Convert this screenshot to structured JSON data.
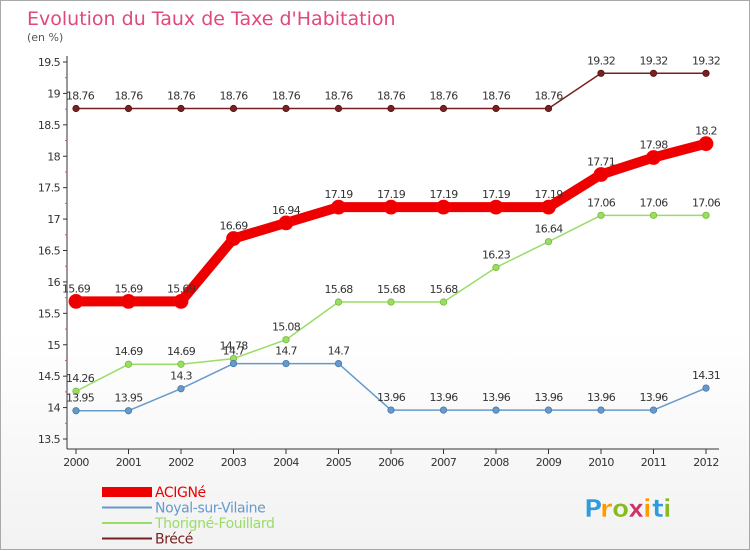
{
  "chart_data": {
    "type": "line",
    "title": "Evolution du Taux de Taxe d'Habitation",
    "subtitle": "(en %)",
    "categories": [
      "2000",
      "2001",
      "2002",
      "2003",
      "2004",
      "2005",
      "2006",
      "2007",
      "2008",
      "2009",
      "2010",
      "2011",
      "2012"
    ],
    "ylim": [
      13.5,
      19.5
    ],
    "yticks": [
      "13.5",
      "14",
      "14.5",
      "15",
      "15.5",
      "16",
      "16.5",
      "17",
      "17.5",
      "18",
      "18.5",
      "19",
      "19.5"
    ],
    "grid": false,
    "legend_position": "bottom-left",
    "series": [
      {
        "name": "ACIGNé",
        "color": "#ee0000",
        "values": [
          15.69,
          15.69,
          15.69,
          16.69,
          16.94,
          17.19,
          17.19,
          17.19,
          17.19,
          17.19,
          17.71,
          17.98,
          18.2
        ],
        "labels": [
          "15.69",
          "15.69",
          "15.69",
          "16.69",
          "16.94",
          "17.19",
          "17.19",
          "17.19",
          "17.19",
          "17.19",
          "17.71",
          "17.98",
          "18.2"
        ]
      },
      {
        "name": "Noyal-sur-Vilaine",
        "color": "#6699cc",
        "values": [
          13.95,
          13.95,
          14.3,
          14.7,
          14.7,
          14.7,
          13.96,
          13.96,
          13.96,
          13.96,
          13.96,
          13.96,
          14.31
        ],
        "labels": [
          "13.95",
          "13.95",
          "14.3",
          "14.7",
          "14.7",
          "14.7",
          "13.96",
          "13.96",
          "13.96",
          "13.96",
          "13.96",
          "13.96",
          "14.31"
        ]
      },
      {
        "name": "Thorigné-Fouillard",
        "color": "#99dd66",
        "values": [
          14.26,
          14.69,
          14.69,
          14.78,
          15.08,
          15.68,
          15.68,
          15.68,
          16.23,
          16.64,
          17.06,
          17.06,
          17.06
        ],
        "labels": [
          "14.26",
          "14.69",
          "14.69",
          "14.78",
          "15.08",
          "15.68",
          "15.68",
          "15.68",
          "16.23",
          "16.64",
          "17.06",
          "17.06",
          "17.06"
        ]
      },
      {
        "name": "Brécé",
        "color": "#772222",
        "values": [
          18.76,
          18.76,
          18.76,
          18.76,
          18.76,
          18.76,
          18.76,
          18.76,
          18.76,
          18.76,
          19.32,
          19.32,
          19.32
        ],
        "labels": [
          "18.76",
          "18.76",
          "18.76",
          "18.76",
          "18.76",
          "18.76",
          "18.76",
          "18.76",
          "18.76",
          "18.76",
          "19.32",
          "19.32",
          "19.32"
        ]
      }
    ]
  },
  "logo": {
    "letters": [
      "P",
      "r",
      "o",
      "x",
      "i",
      "t",
      "i"
    ],
    "colors": [
      "#3399dd",
      "#ff9900",
      "#88bb22",
      "#cc3366",
      "#ff9900",
      "#3399dd",
      "#88bb22"
    ]
  }
}
